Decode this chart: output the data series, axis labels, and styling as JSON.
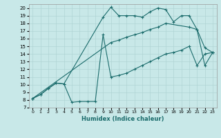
{
  "xlabel": "Humidex (Indice chaleur)",
  "bg_color": "#c8e8e8",
  "line_color": "#1a6b6b",
  "grid_color": "#b0d4d4",
  "xlim": [
    -0.5,
    23.5
  ],
  "ylim": [
    7,
    20.5
  ],
  "xticks": [
    0,
    1,
    2,
    3,
    4,
    5,
    6,
    7,
    8,
    9,
    10,
    11,
    12,
    13,
    14,
    15,
    16,
    17,
    18,
    19,
    20,
    21,
    22,
    23
  ],
  "yticks": [
    7,
    8,
    9,
    10,
    11,
    12,
    13,
    14,
    15,
    16,
    17,
    18,
    19,
    20
  ],
  "line1_x": [
    0,
    1,
    2,
    3,
    4,
    5,
    6,
    7,
    8,
    9,
    10,
    11,
    12,
    13,
    14,
    15,
    16,
    17,
    18,
    19,
    20,
    21,
    22,
    23
  ],
  "line1_y": [
    8.2,
    8.7,
    9.5,
    10.2,
    10.1,
    7.7,
    7.8,
    7.8,
    7.8,
    16.5,
    11.0,
    11.2,
    11.5,
    12.0,
    12.5,
    13.0,
    13.5,
    14.0,
    14.2,
    14.5,
    15.0,
    12.5,
    14.0,
    14.2
  ],
  "line2_x": [
    0,
    1,
    2,
    3,
    4,
    9,
    10,
    11,
    12,
    13,
    14,
    15,
    16,
    17,
    18,
    19,
    20,
    21,
    22,
    23
  ],
  "line2_y": [
    8.2,
    8.7,
    9.5,
    10.2,
    10.1,
    18.8,
    20.1,
    19.0,
    19.0,
    19.0,
    18.8,
    19.5,
    20.0,
    19.8,
    18.2,
    19.0,
    19.0,
    17.2,
    14.8,
    14.2
  ],
  "line3_x": [
    0,
    10,
    11,
    12,
    13,
    14,
    15,
    16,
    17,
    20,
    21,
    22,
    23
  ],
  "line3_y": [
    8.2,
    15.5,
    15.8,
    16.2,
    16.5,
    16.8,
    17.2,
    17.5,
    18.0,
    17.5,
    17.2,
    12.5,
    14.2
  ]
}
